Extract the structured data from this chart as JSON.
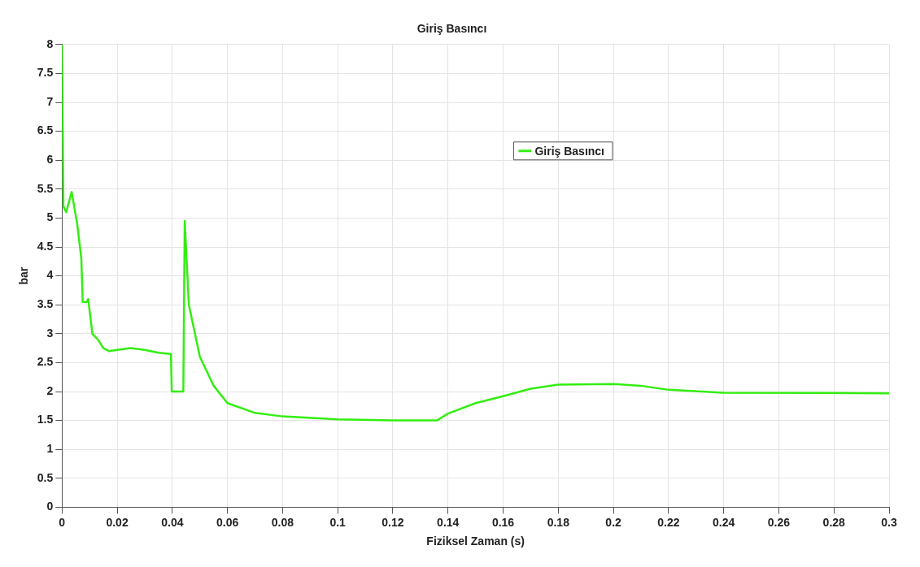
{
  "chart_data": {
    "type": "line",
    "title": "Giriş Basıncı",
    "xlabel": "Fiziksel Zaman (s)",
    "ylabel": "bar",
    "xlim": [
      0,
      0.3
    ],
    "xticks": [
      0,
      0.02,
      0.04,
      0.06,
      0.08,
      0.1,
      0.12,
      0.14,
      0.16,
      0.18,
      0.2,
      0.22,
      0.24,
      0.26,
      0.28,
      0.3
    ],
    "ylim": [
      0,
      8
    ],
    "yticks": [
      0,
      0.5,
      1,
      1.5,
      2,
      2.5,
      3,
      3.5,
      4,
      4.5,
      5,
      5.5,
      6,
      6.5,
      7,
      7.5,
      8
    ],
    "grid": true,
    "legend": "top right",
    "marker": "none",
    "line_style": "solid",
    "series": [
      {
        "name": "Giriş Basıncı",
        "color": "#33ee11",
        "x": [
          0,
          0.0005,
          0.0015,
          0.0035,
          0.0055,
          0.007,
          0.0075,
          0.009,
          0.0095,
          0.011,
          0.013,
          0.015,
          0.017,
          0.02,
          0.025,
          0.03,
          0.035,
          0.0395,
          0.0398,
          0.044,
          0.0445,
          0.046,
          0.05,
          0.055,
          0.06,
          0.07,
          0.08,
          0.1,
          0.12,
          0.136,
          0.14,
          0.15,
          0.16,
          0.17,
          0.18,
          0.2,
          0.21,
          0.22,
          0.24,
          0.3
        ],
        "values": [
          8,
          5.2,
          5.1,
          5.45,
          4.9,
          4.3,
          3.55,
          3.55,
          3.6,
          3.0,
          2.9,
          2.75,
          2.7,
          2.72,
          2.75,
          2.72,
          2.67,
          2.65,
          2.0,
          2.0,
          4.95,
          3.5,
          2.6,
          2.1,
          1.8,
          1.63,
          1.57,
          1.52,
          1.5,
          1.5,
          1.62,
          1.8,
          1.92,
          2.05,
          2.12,
          2.13,
          2.1,
          2.03,
          1.98,
          1.97
        ]
      }
    ]
  }
}
